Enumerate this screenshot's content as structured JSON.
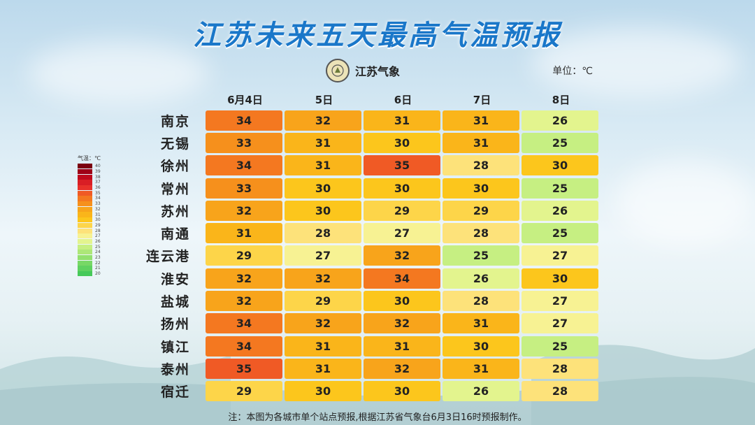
{
  "title": "江苏未来五天最高气温预报",
  "logo_text": "江苏气象",
  "unit_label": "单位：℃",
  "legend": {
    "title": "气温：℃",
    "levels": [
      {
        "value": "40",
        "color": "#7a0010"
      },
      {
        "value": "39",
        "color": "#9e0016"
      },
      {
        "value": "38",
        "color": "#be0a1c"
      },
      {
        "value": "37",
        "color": "#d91e25"
      },
      {
        "value": "36",
        "color": "#e8312a"
      },
      {
        "value": "35",
        "color": "#f05a25"
      },
      {
        "value": "34",
        "color": "#f47820"
      },
      {
        "value": "33",
        "color": "#f6901c"
      },
      {
        "value": "32",
        "color": "#f8a41b"
      },
      {
        "value": "31",
        "color": "#fab51a"
      },
      {
        "value": "30",
        "color": "#fcc61c"
      },
      {
        "value": "29",
        "color": "#fdd549"
      },
      {
        "value": "28",
        "color": "#fde27a"
      },
      {
        "value": "27",
        "color": "#f7f293"
      },
      {
        "value": "26",
        "color": "#e3f48e"
      },
      {
        "value": "25",
        "color": "#c6ef82"
      },
      {
        "value": "24",
        "color": "#ade778"
      },
      {
        "value": "23",
        "color": "#92e06e"
      },
      {
        "value": "22",
        "color": "#77d866"
      },
      {
        "value": "21",
        "color": "#5fd160"
      },
      {
        "value": "20",
        "color": "#46c95a"
      }
    ]
  },
  "dates": [
    "6月4日",
    "5日",
    "6日",
    "7日",
    "8日"
  ],
  "rows": [
    {
      "city": "南京",
      "values": [
        "34",
        "32",
        "31",
        "31",
        "26"
      ]
    },
    {
      "city": "无锡",
      "values": [
        "33",
        "31",
        "30",
        "31",
        "25"
      ]
    },
    {
      "city": "徐州",
      "values": [
        "34",
        "31",
        "35",
        "28",
        "30"
      ]
    },
    {
      "city": "常州",
      "values": [
        "33",
        "30",
        "30",
        "30",
        "25"
      ]
    },
    {
      "city": "苏州",
      "values": [
        "32",
        "30",
        "29",
        "29",
        "26"
      ]
    },
    {
      "city": "南通",
      "values": [
        "31",
        "28",
        "27",
        "28",
        "25"
      ]
    },
    {
      "city": "连云港",
      "values": [
        "29",
        "27",
        "32",
        "25",
        "27"
      ]
    },
    {
      "city": "淮安",
      "values": [
        "32",
        "32",
        "34",
        "26",
        "30"
      ]
    },
    {
      "city": "盐城",
      "values": [
        "32",
        "29",
        "30",
        "28",
        "27"
      ]
    },
    {
      "city": "扬州",
      "values": [
        "34",
        "32",
        "32",
        "31",
        "27"
      ]
    },
    {
      "city": "镇江",
      "values": [
        "34",
        "31",
        "31",
        "30",
        "25"
      ]
    },
    {
      "city": "泰州",
      "values": [
        "35",
        "31",
        "32",
        "31",
        "28"
      ]
    },
    {
      "city": "宿迁",
      "values": [
        "29",
        "30",
        "30",
        "26",
        "28"
      ]
    }
  ],
  "note": "注：本图为各城市单个站点预报,根据江苏省气象台6月3日16时预报制作。"
}
